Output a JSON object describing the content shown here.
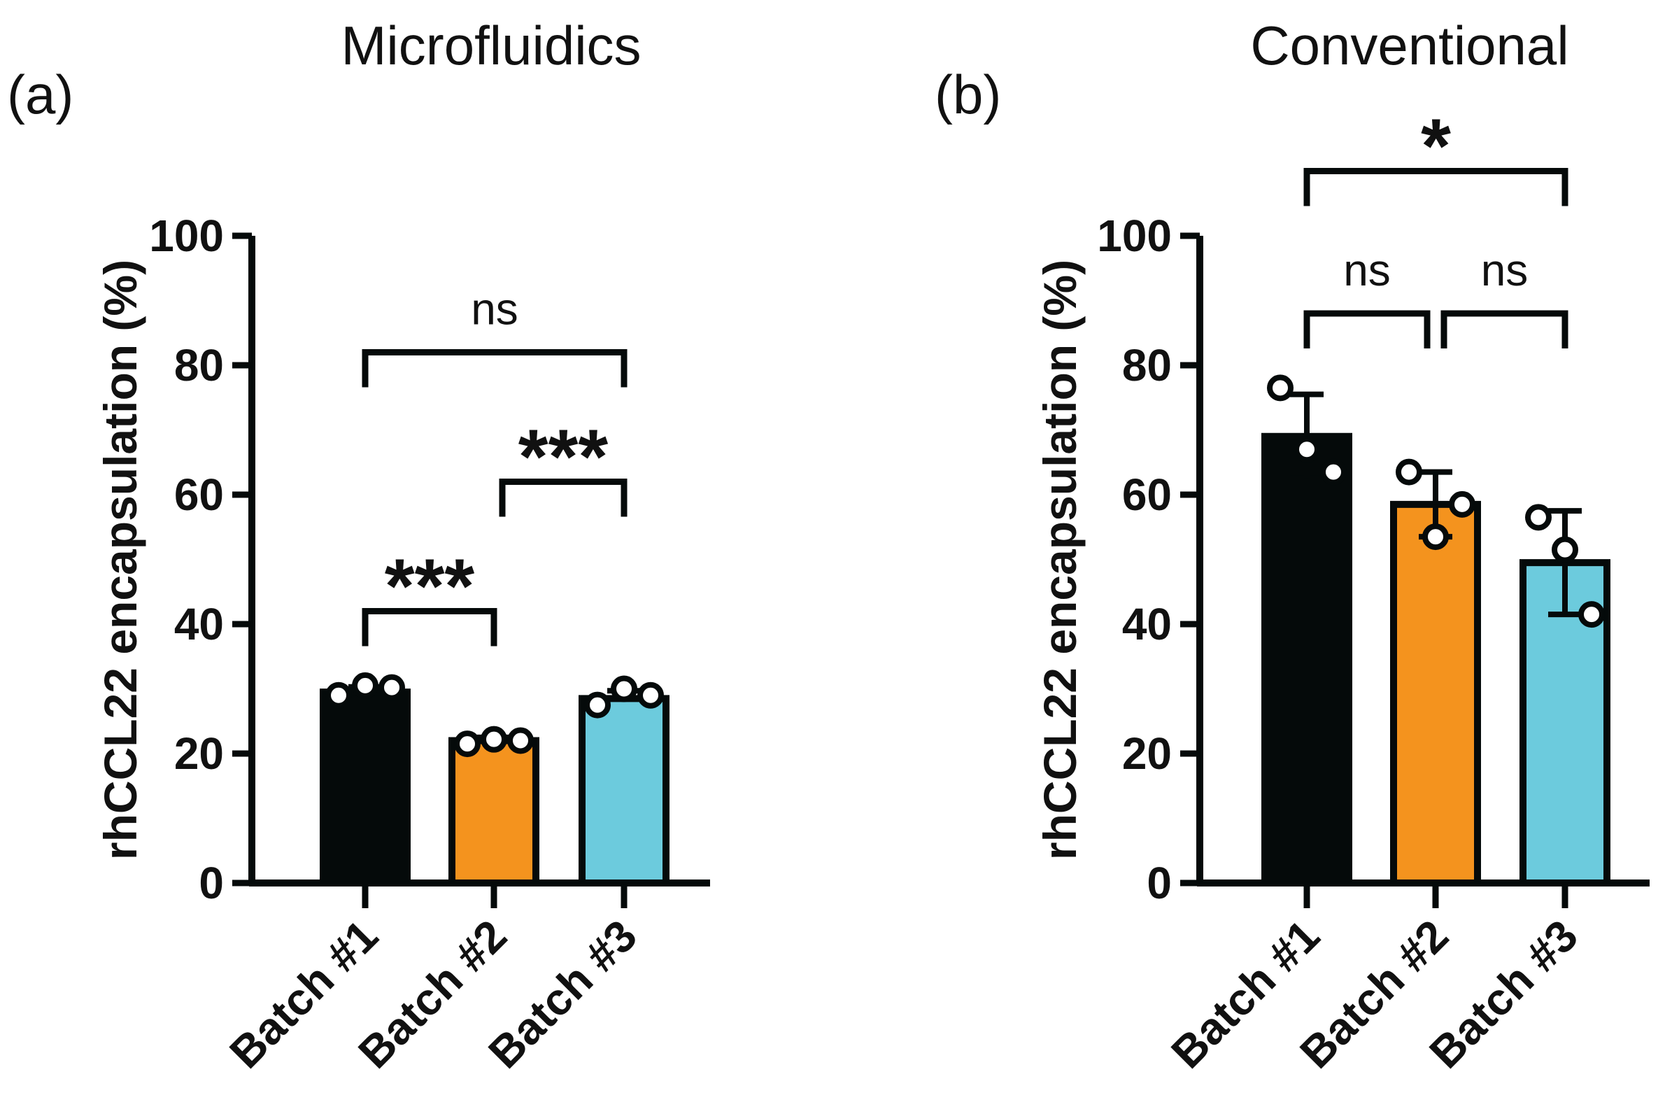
{
  "chart_data": [
    {
      "type": "bar",
      "panel_label": "(a)",
      "title": "Microfluidics",
      "xlabel": "",
      "ylabel": "rhCCL22 encapsulation (%)",
      "ylim": [
        0,
        100
      ],
      "yticks": [
        0,
        20,
        40,
        60,
        80,
        100
      ],
      "categories": [
        "Batch #1",
        "Batch #2",
        "Batch #3"
      ],
      "values": [
        29.5,
        22,
        28.5
      ],
      "errors": [
        0.8,
        0.5,
        1.2
      ],
      "points": [
        [
          29,
          30.5,
          30.2
        ],
        [
          21.5,
          22.2,
          22
        ],
        [
          27.5,
          30,
          29
        ]
      ],
      "colors": [
        "#050a0a",
        "#f4931e",
        "#6ccbdd"
      ],
      "significance": [
        {
          "from": 0,
          "to": 1,
          "label": "***",
          "y": 42
        },
        {
          "from": 1,
          "to": 2,
          "label": "***",
          "y": 62
        },
        {
          "from": 0,
          "to": 2,
          "label": "ns",
          "y": 82
        }
      ]
    },
    {
      "type": "bar",
      "panel_label": "(b)",
      "title": "Conventional",
      "xlabel": "",
      "ylabel": "rhCCL22 encapsulation (%)",
      "ylim": [
        0,
        100
      ],
      "yticks": [
        0,
        20,
        40,
        60,
        80,
        100
      ],
      "categories": [
        "Batch #1",
        "Batch #2",
        "Batch #3"
      ],
      "values": [
        69,
        58.5,
        49.5
      ],
      "errors": [
        6.5,
        5,
        8
      ],
      "points": [
        [
          76.5,
          67,
          63.5
        ],
        [
          63.5,
          53.5,
          58.5
        ],
        [
          56.5,
          51.5,
          41.5
        ]
      ],
      "colors": [
        "#050a0a",
        "#f4931e",
        "#6ccbdd"
      ],
      "significance": [
        {
          "from": 0,
          "to": 1,
          "label": "ns",
          "y": 88
        },
        {
          "from": 1,
          "to": 2,
          "label": "ns",
          "y": 88
        },
        {
          "from": 0,
          "to": 2,
          "label": "*",
          "y": 110
        }
      ]
    }
  ]
}
